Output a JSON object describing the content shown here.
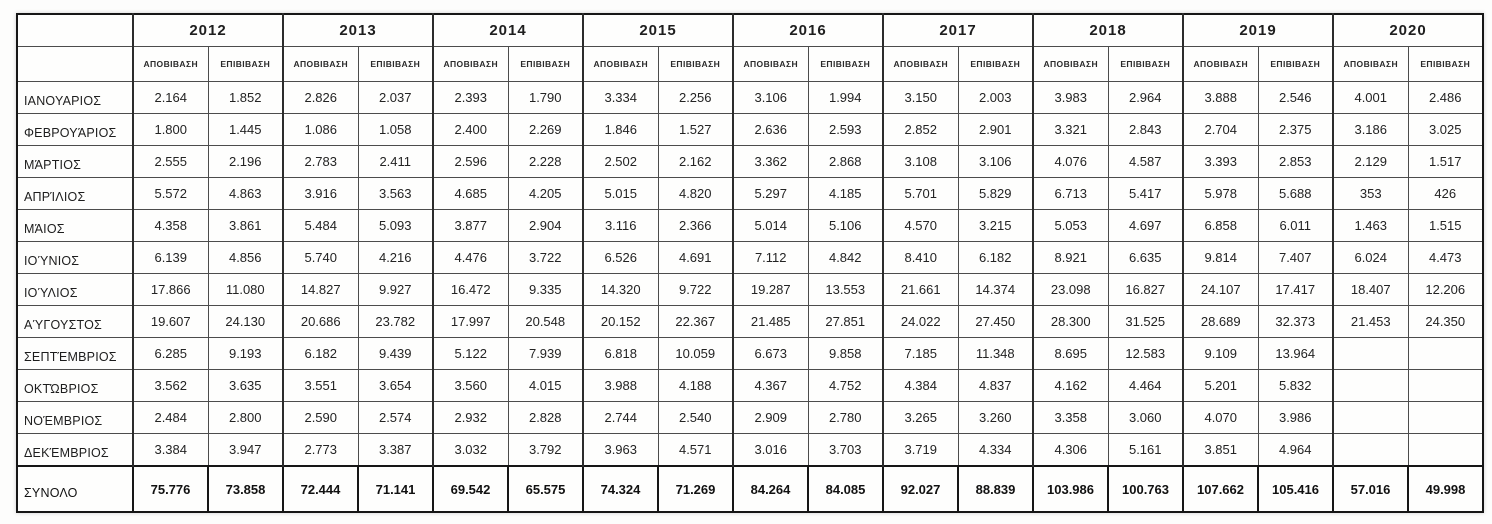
{
  "table": {
    "corner_label": "",
    "years": [
      "2012",
      "2013",
      "2014",
      "2015",
      "2016",
      "2017",
      "2018",
      "2019",
      "2020"
    ],
    "subheaders": [
      "ΑΠΟΒΙΒΑΣΗ",
      "ΕΠΙΒΙΒΑΣΗ"
    ],
    "rows": [
      {
        "label": "ΙΑΝΟΥΑΡΙΟΣ",
        "values": [
          "2.164",
          "1.852",
          "2.826",
          "2.037",
          "2.393",
          "1.790",
          "3.334",
          "2.256",
          "3.106",
          "1.994",
          "3.150",
          "2.003",
          "3.983",
          "2.964",
          "3.888",
          "2.546",
          "4.001",
          "2.486"
        ]
      },
      {
        "label": "ΦΕΒΡΟΥΆΡΙΟΣ",
        "values": [
          "1.800",
          "1.445",
          "1.086",
          "1.058",
          "2.400",
          "2.269",
          "1.846",
          "1.527",
          "2.636",
          "2.593",
          "2.852",
          "2.901",
          "3.321",
          "2.843",
          "2.704",
          "2.375",
          "3.186",
          "3.025"
        ]
      },
      {
        "label": "ΜΆΡΤΙΟΣ",
        "values": [
          "2.555",
          "2.196",
          "2.783",
          "2.411",
          "2.596",
          "2.228",
          "2.502",
          "2.162",
          "3.362",
          "2.868",
          "3.108",
          "3.106",
          "4.076",
          "4.587",
          "3.393",
          "2.853",
          "2.129",
          "1.517"
        ]
      },
      {
        "label": "ΑΠΡΊΛΙΟΣ",
        "values": [
          "5.572",
          "4.863",
          "3.916",
          "3.563",
          "4.685",
          "4.205",
          "5.015",
          "4.820",
          "5.297",
          "4.185",
          "5.701",
          "5.829",
          "6.713",
          "5.417",
          "5.978",
          "5.688",
          "353",
          "426"
        ]
      },
      {
        "label": "ΜΆΙΟΣ",
        "values": [
          "4.358",
          "3.861",
          "5.484",
          "5.093",
          "3.877",
          "2.904",
          "3.116",
          "2.366",
          "5.014",
          "5.106",
          "4.570",
          "3.215",
          "5.053",
          "4.697",
          "6.858",
          "6.011",
          "1.463",
          "1.515"
        ]
      },
      {
        "label": "ΙΟΎΝΙΟΣ",
        "values": [
          "6.139",
          "4.856",
          "5.740",
          "4.216",
          "4.476",
          "3.722",
          "6.526",
          "4.691",
          "7.112",
          "4.842",
          "8.410",
          "6.182",
          "8.921",
          "6.635",
          "9.814",
          "7.407",
          "6.024",
          "4.473"
        ]
      },
      {
        "label": "ΙΟΎΛΙΟΣ",
        "values": [
          "17.866",
          "11.080",
          "14.827",
          "9.927",
          "16.472",
          "9.335",
          "14.320",
          "9.722",
          "19.287",
          "13.553",
          "21.661",
          "14.374",
          "23.098",
          "16.827",
          "24.107",
          "17.417",
          "18.407",
          "12.206"
        ]
      },
      {
        "label": "ΑΎΓΟΥΣΤΟΣ",
        "values": [
          "19.607",
          "24.130",
          "20.686",
          "23.782",
          "17.997",
          "20.548",
          "20.152",
          "22.367",
          "21.485",
          "27.851",
          "24.022",
          "27.450",
          "28.300",
          "31.525",
          "28.689",
          "32.373",
          "21.453",
          "24.350"
        ]
      },
      {
        "label": "ΣΕΠΤΈΜΒΡΙΟΣ",
        "values": [
          "6.285",
          "9.193",
          "6.182",
          "9.439",
          "5.122",
          "7.939",
          "6.818",
          "10.059",
          "6.673",
          "9.858",
          "7.185",
          "11.348",
          "8.695",
          "12.583",
          "9.109",
          "13.964",
          "",
          ""
        ]
      },
      {
        "label": "ΟΚΤΏΒΡΙΟΣ",
        "values": [
          "3.562",
          "3.635",
          "3.551",
          "3.654",
          "3.560",
          "4.015",
          "3.988",
          "4.188",
          "4.367",
          "4.752",
          "4.384",
          "4.837",
          "4.162",
          "4.464",
          "5.201",
          "5.832",
          "",
          ""
        ]
      },
      {
        "label": "ΝΟΈΜΒΡΙΟΣ",
        "values": [
          "2.484",
          "2.800",
          "2.590",
          "2.574",
          "2.932",
          "2.828",
          "2.744",
          "2.540",
          "2.909",
          "2.780",
          "3.265",
          "3.260",
          "3.358",
          "3.060",
          "4.070",
          "3.986",
          "",
          ""
        ]
      },
      {
        "label": "ΔΕΚΈΜΒΡΙΟΣ",
        "values": [
          "3.384",
          "3.947",
          "2.773",
          "3.387",
          "3.032",
          "3.792",
          "3.963",
          "4.571",
          "3.016",
          "3.703",
          "3.719",
          "4.334",
          "4.306",
          "5.161",
          "3.851",
          "4.964",
          "",
          ""
        ]
      }
    ],
    "total_row": {
      "label": "ΣΥΝΟΛΟ",
      "values": [
        "75.776",
        "73.858",
        "72.444",
        "71.141",
        "69.542",
        "65.575",
        "74.324",
        "71.269",
        "84.264",
        "84.085",
        "92.027",
        "88.839",
        "103.986",
        "100.763",
        "107.662",
        "105.416",
        "57.016",
        "49.998"
      ]
    }
  }
}
